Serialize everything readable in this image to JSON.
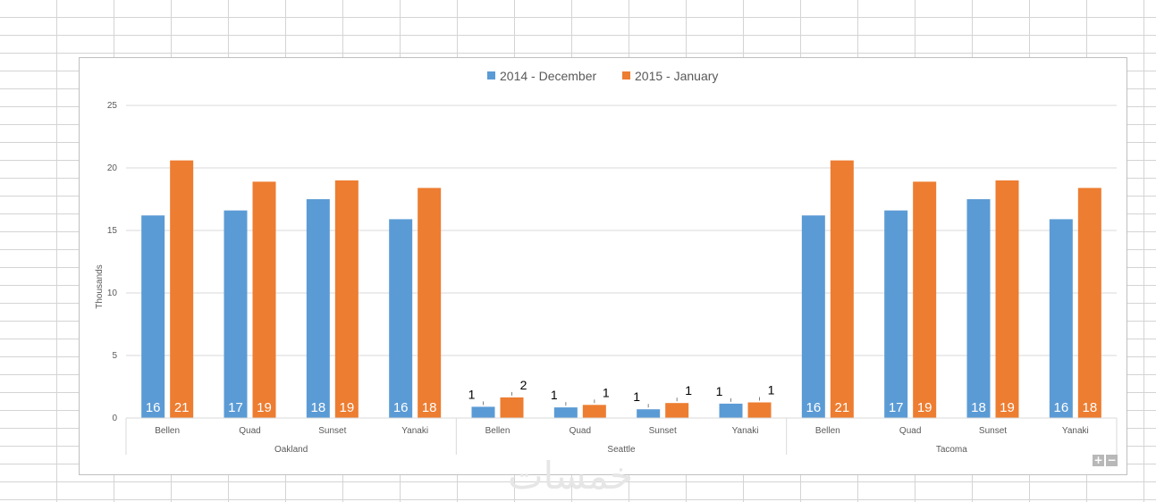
{
  "chart_data": {
    "type": "bar",
    "xlabel": "",
    "ylabel": "Thousands",
    "ylim": [
      0,
      25
    ],
    "yticks": [
      0,
      5,
      10,
      15,
      20,
      25
    ],
    "grid": true,
    "legend_position": "top",
    "groups": [
      {
        "name": "Oakland",
        "categories": [
          "Bellen",
          "Quad",
          "Sunset",
          "Yanaki"
        ]
      },
      {
        "name": "Seattle",
        "categories": [
          "Bellen",
          "Quad",
          "Sunset",
          "Yanaki"
        ]
      },
      {
        "name": "Tacoma",
        "categories": [
          "Bellen",
          "Quad",
          "Sunset",
          "Yanaki"
        ]
      }
    ],
    "series": [
      {
        "name": "2014 - December",
        "color": "#5b9bd5",
        "values": [
          16.2,
          16.6,
          17.5,
          15.9,
          0.9,
          0.85,
          0.7,
          1.15,
          16.2,
          16.6,
          17.5,
          15.9
        ],
        "labels": [
          "16",
          "17",
          "18",
          "16",
          "1",
          "1",
          "1",
          "1",
          "16",
          "17",
          "18",
          "16"
        ]
      },
      {
        "name": "2015 - January",
        "color": "#ed7d31",
        "values": [
          20.6,
          18.9,
          19.0,
          18.4,
          1.65,
          1.05,
          1.2,
          1.25,
          20.6,
          18.9,
          19.0,
          18.4
        ],
        "labels": [
          "21",
          "19",
          "19",
          "18",
          "2",
          "1",
          "1",
          "1",
          "21",
          "19",
          "19",
          "18"
        ]
      }
    ]
  },
  "watermark": "خمسات",
  "controls": {
    "plus": "+",
    "minus": "−"
  }
}
